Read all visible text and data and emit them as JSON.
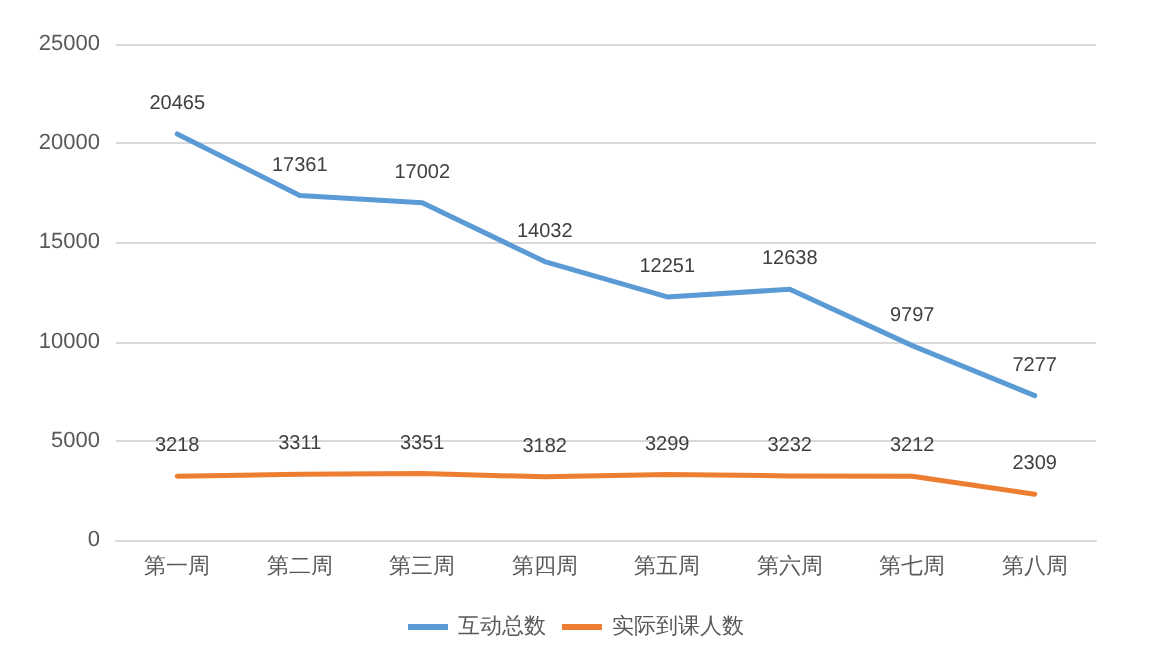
{
  "chart_data": {
    "type": "line",
    "categories": [
      "第一周",
      "第二周",
      "第三周",
      "第四周",
      "第五周",
      "第六周",
      "第七周",
      "第八周"
    ],
    "series": [
      {
        "name": "互动总数",
        "color": "#5b9bd5",
        "values": [
          20465,
          17361,
          17002,
          14032,
          12251,
          12638,
          9797,
          7277
        ]
      },
      {
        "name": "实际到课人数",
        "color": "#ed7d31",
        "values": [
          3218,
          3311,
          3351,
          3182,
          3299,
          3232,
          3212,
          2309
        ]
      }
    ],
    "ylim": [
      0,
      25000
    ],
    "yticks": [
      0,
      5000,
      10000,
      15000,
      20000,
      25000
    ],
    "grid": "y",
    "legend": "bottom",
    "data_labels": true,
    "marker": "none",
    "line_style": "solid"
  }
}
